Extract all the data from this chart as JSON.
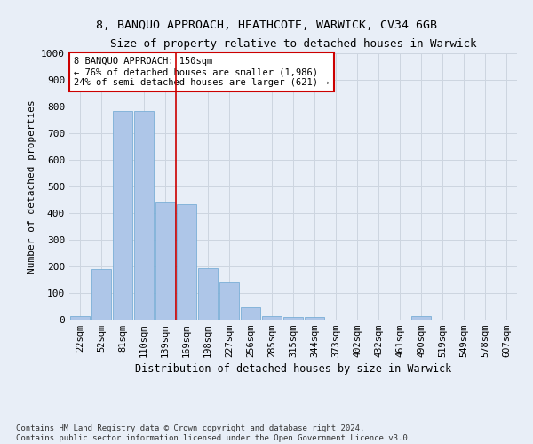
{
  "title": "8, BANQUO APPROACH, HEATHCOTE, WARWICK, CV34 6GB",
  "subtitle": "Size of property relative to detached houses in Warwick",
  "xlabel": "Distribution of detached houses by size in Warwick",
  "ylabel": "Number of detached properties",
  "categories": [
    "22sqm",
    "52sqm",
    "81sqm",
    "110sqm",
    "139sqm",
    "169sqm",
    "198sqm",
    "227sqm",
    "256sqm",
    "285sqm",
    "315sqm",
    "344sqm",
    "373sqm",
    "402sqm",
    "432sqm",
    "461sqm",
    "490sqm",
    "519sqm",
    "549sqm",
    "578sqm",
    "607sqm"
  ],
  "values": [
    15,
    190,
    785,
    785,
    440,
    435,
    195,
    140,
    48,
    15,
    10,
    10,
    0,
    0,
    0,
    0,
    14,
    0,
    0,
    0,
    0
  ],
  "bar_color": "#aec6e8",
  "bar_edge_color": "#7aaed6",
  "red_line_index": 4.5,
  "annotation_text": "8 BANQUO APPROACH: 150sqm\n← 76% of detached houses are smaller (1,986)\n24% of semi-detached houses are larger (621) →",
  "annotation_box_color": "#ffffff",
  "annotation_box_edge": "#cc0000",
  "ylim": [
    0,
    1000
  ],
  "yticks": [
    0,
    100,
    200,
    300,
    400,
    500,
    600,
    700,
    800,
    900,
    1000
  ],
  "grid_color": "#cdd5e0",
  "bg_color": "#e8eef7",
  "footer": "Contains HM Land Registry data © Crown copyright and database right 2024.\nContains public sector information licensed under the Open Government Licence v3.0."
}
